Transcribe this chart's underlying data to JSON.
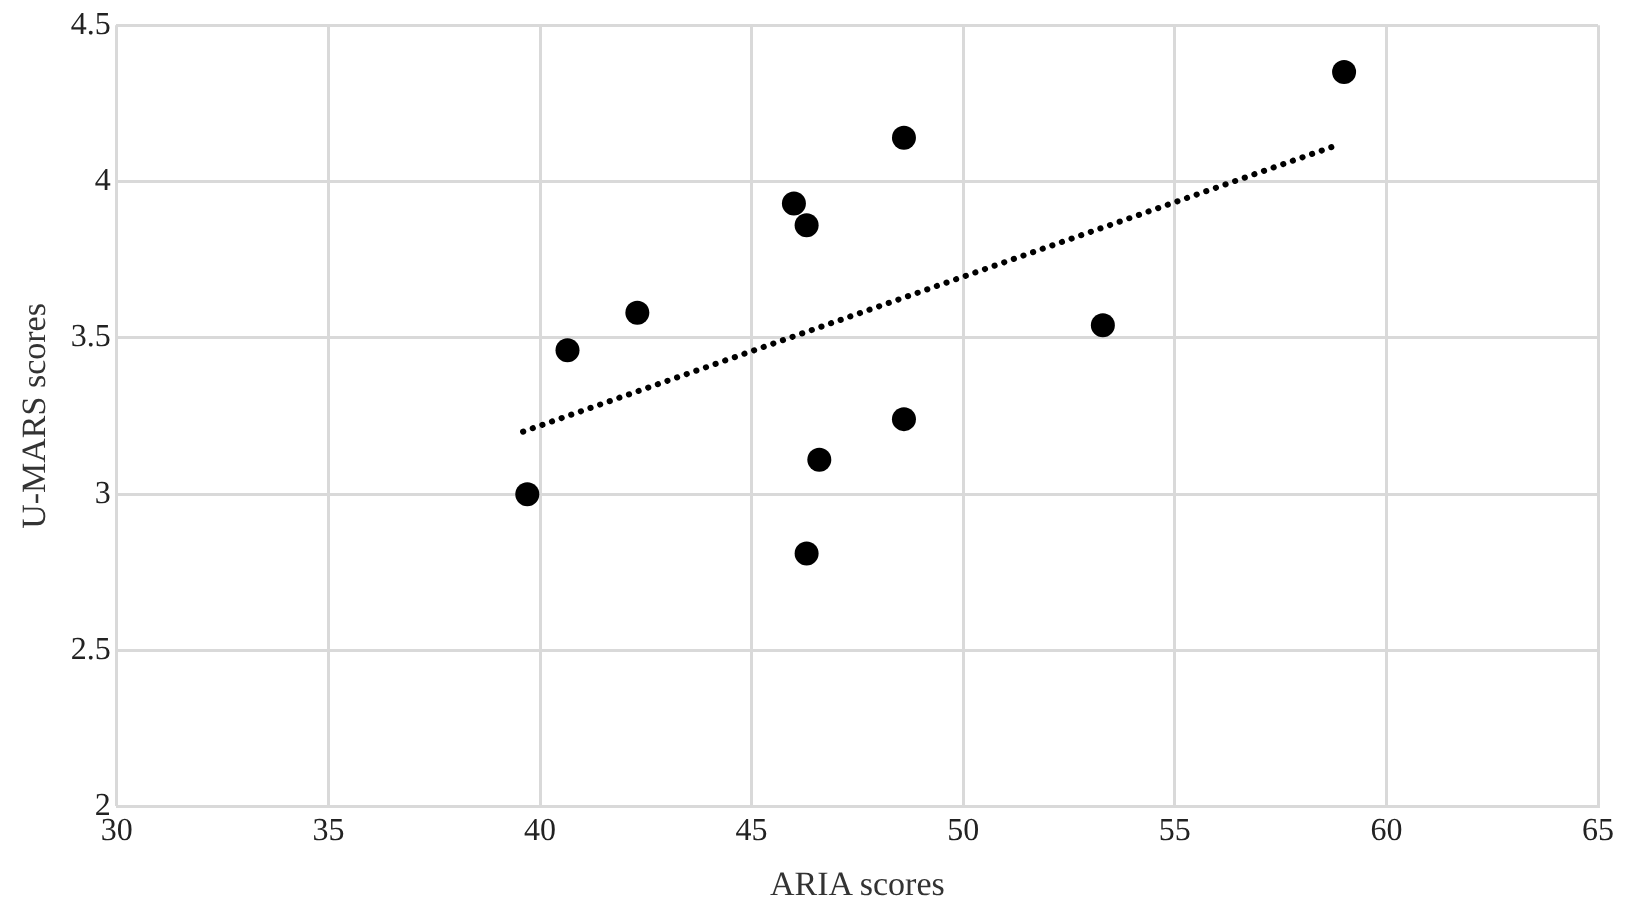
{
  "chart_data": {
    "type": "scatter",
    "xlabel": "ARIA scores",
    "ylabel": "U-MARS scores",
    "xlim": [
      30,
      65
    ],
    "xticks": [
      30,
      35,
      40,
      45,
      50,
      55,
      60,
      65
    ],
    "ylim": [
      2,
      4.5
    ],
    "yticks": [
      2,
      2.5,
      3,
      3.5,
      4,
      4.5
    ],
    "grid": true,
    "legend": false,
    "marker": "circle",
    "series": [
      {
        "type": "scatter",
        "color": "#000000",
        "x": [
          39.7,
          40.65,
          42.3,
          46.0,
          46.3,
          46.3,
          46.6,
          48.6,
          48.6,
          53.3,
          59.0
        ],
        "values": [
          3.0,
          3.46,
          3.58,
          3.93,
          3.86,
          2.81,
          3.11,
          4.14,
          3.24,
          3.54,
          4.35
        ]
      },
      {
        "type": "line",
        "color": "#000000",
        "line_style": "dotted",
        "marker": "none",
        "x": [
          39.6,
          58.7
        ],
        "values": [
          3.2,
          4.11
        ]
      }
    ]
  }
}
